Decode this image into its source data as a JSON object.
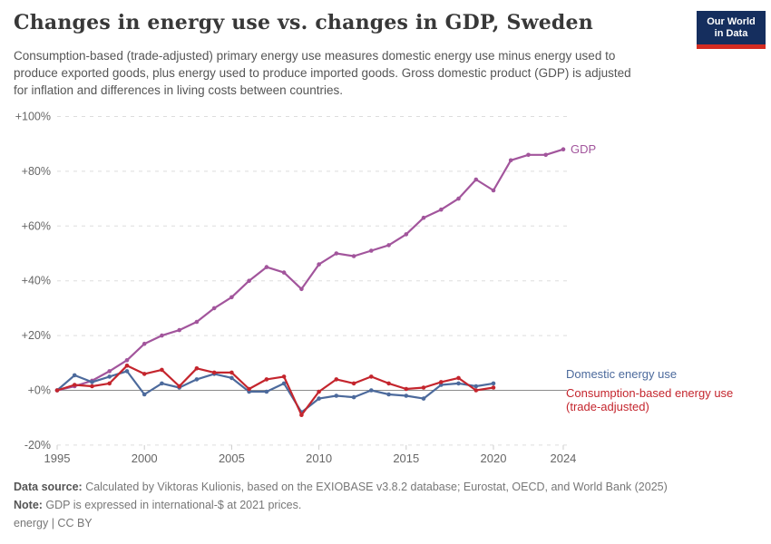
{
  "header": {
    "title": "Changes in energy use vs. changes in GDP, Sweden",
    "subtitle": "Consumption-based (trade-adjusted) primary energy use measures domestic energy use minus energy used to produce exported goods, plus energy used to produce imported goods. Gross domestic product (GDP) is adjusted for inflation and differences in living costs between countries.",
    "logo": {
      "line1": "Our World",
      "line2": "in Data",
      "bg_color": "#152E5E",
      "bar_color": "#D42B21"
    }
  },
  "chart_data": {
    "type": "line",
    "title": "Changes in energy use vs. changes in GDP, Sweden",
    "ylabel": "",
    "xlabel": "",
    "ylim": [
      -20,
      100
    ],
    "xlim": [
      1995,
      2024
    ],
    "grid": "horizontal-dashed",
    "legend_position": "end-of-line-right",
    "yticks": [
      {
        "v": 100,
        "label": "+100%"
      },
      {
        "v": 80,
        "label": "+80%"
      },
      {
        "v": 60,
        "label": "+60%"
      },
      {
        "v": 40,
        "label": "+40%"
      },
      {
        "v": 20,
        "label": "+20%"
      },
      {
        "v": 0,
        "label": "+0%"
      },
      {
        "v": -20,
        "label": "-20%"
      }
    ],
    "xticks": [
      {
        "year": 1995,
        "label": "1995"
      },
      {
        "year": 2000,
        "label": "2000"
      },
      {
        "year": 2005,
        "label": "2005"
      },
      {
        "year": 2010,
        "label": "2010"
      },
      {
        "year": 2015,
        "label": "2015"
      },
      {
        "year": 2020,
        "label": "2020"
      },
      {
        "year": 2024,
        "label": "2024"
      }
    ],
    "series": [
      {
        "name": "GDP",
        "color": "#A2559C",
        "start_year": 1995,
        "label_lines": [
          "GDP"
        ],
        "values": [
          0,
          1.5,
          3.5,
          7,
          11,
          17,
          20,
          22,
          25,
          30,
          34,
          40,
          45,
          43,
          37,
          46,
          50,
          49,
          51,
          53,
          57,
          63,
          66,
          70,
          77,
          73,
          84,
          86,
          86,
          88
        ]
      },
      {
        "name": "Domestic energy use",
        "color": "#4C6A9C",
        "start_year": 1995,
        "label_lines": [
          "Domestic energy use"
        ],
        "values": [
          0,
          5.5,
          3,
          5,
          7,
          -1.5,
          2.5,
          1,
          4,
          6,
          4.5,
          -0.5,
          -0.5,
          2.5,
          -8,
          -3,
          -2,
          -2.5,
          0,
          -1.5,
          -2,
          -3,
          2,
          2.5,
          1.5,
          2.5
        ]
      },
      {
        "name": "Consumption-based energy use (trade-adjusted)",
        "color": "#C4252D",
        "start_year": 1995,
        "label_lines": [
          "Consumption-based energy use",
          "(trade-adjusted)"
        ],
        "values": [
          0,
          2,
          1.5,
          2.5,
          9,
          6,
          7.5,
          1.5,
          8,
          6.5,
          6.5,
          0.5,
          4,
          5,
          -9,
          -0.5,
          4,
          2.5,
          5,
          2.5,
          0.5,
          1,
          3,
          4.5,
          0,
          1
        ]
      }
    ],
    "style_colors": {
      "grid": "#dddddd",
      "zero_line": "#8c8c8c",
      "axis_text": "#666666",
      "tick": "#cccccc"
    }
  },
  "footer": {
    "data_source_label": "Data source:",
    "data_source_text": " Calculated by Viktoras Kulionis, based on the EXIOBASE v3.8.2 database; Eurostat, OECD, and World Bank (2025)",
    "note_label": "Note:",
    "note_text": " GDP is expressed in international-$ at 2021 prices.",
    "license_text": "energy | CC BY"
  }
}
